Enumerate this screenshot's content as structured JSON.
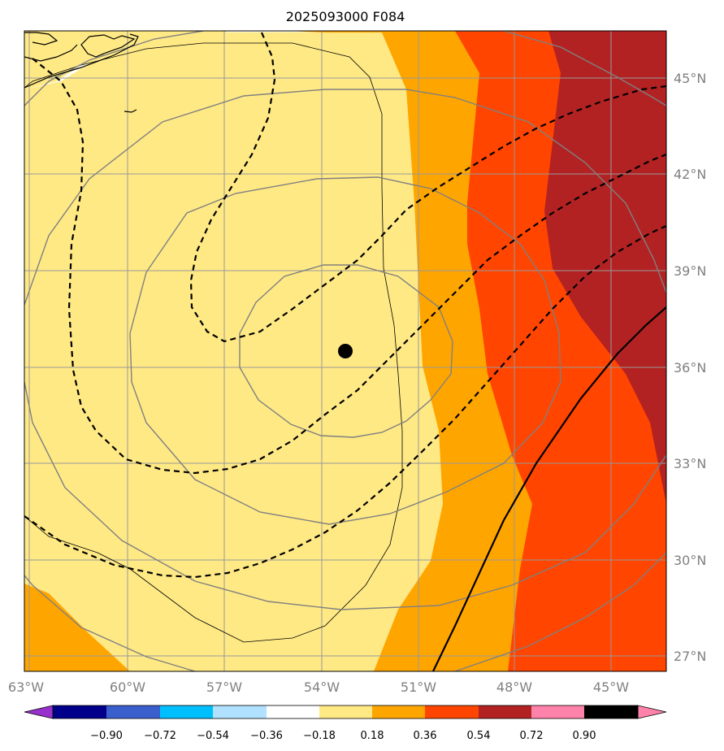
{
  "title": "2025093000 F084",
  "map": {
    "lon_labels": [
      "63°W",
      "60°W",
      "57°W",
      "54°W",
      "51°W",
      "48°W",
      "45°W"
    ],
    "lat_labels": [
      "45°N",
      "42°N",
      "39°N",
      "36°N",
      "33°N",
      "30°N",
      "27°N"
    ],
    "storm_center": {
      "lon": -53.7,
      "lat": 36.5
    },
    "fill_colors": {
      "l1": "#ffe985",
      "l2": "#ffa500",
      "l3": "#ff4500",
      "l4": "#b22222"
    }
  },
  "colorbar": {
    "ticks": [
      "−0.90",
      "−0.72",
      "−0.54",
      "−0.36",
      "−0.18",
      "0.18",
      "0.36",
      "0.54",
      "0.72",
      "0.90"
    ],
    "colors": [
      "#9932cc",
      "#00008b",
      "#3a5fcd",
      "#00bfff",
      "#b0e2ff",
      "#ffffff",
      "#ffe985",
      "#ffa500",
      "#ff4500",
      "#b22222",
      "#ff82ab"
    ]
  }
}
